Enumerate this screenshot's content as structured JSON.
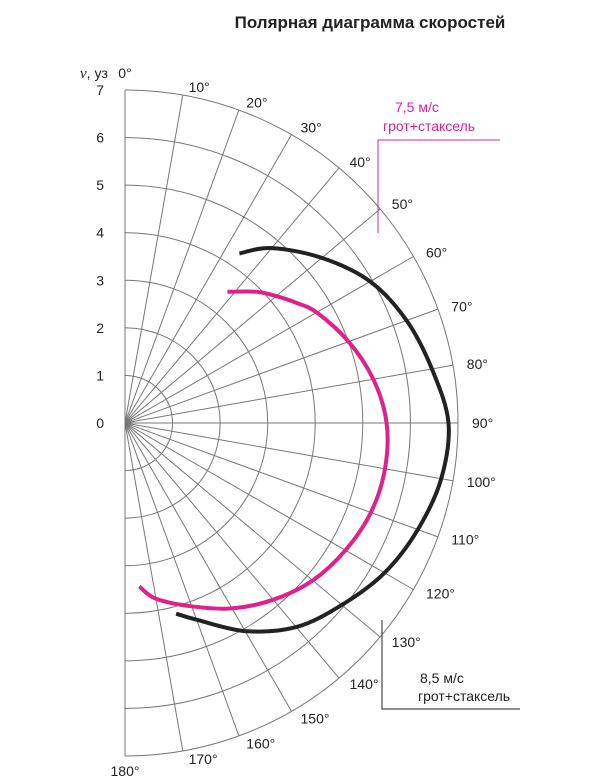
{
  "chart_data": {
    "type": "polar",
    "title": "Полярная диаграмма скоростей",
    "radial_axis": {
      "label": "v",
      "unit": ", уз",
      "range": [
        0,
        7
      ],
      "ticks": [
        "0",
        "1",
        "2",
        "3",
        "4",
        "5",
        "6",
        "7"
      ]
    },
    "angular_axis": {
      "range": [
        0,
        180
      ],
      "ticks": [
        "0°",
        "10°",
        "20°",
        "30°",
        "40°",
        "50°",
        "60°",
        "70°",
        "80°",
        "90°",
        "100°",
        "110°",
        "120°",
        "130°",
        "140°",
        "150°",
        "160°",
        "170°",
        "180°"
      ]
    },
    "grid": true,
    "series": [
      {
        "name_line1": "7,5 м/с",
        "name_line2": "грот+стаксель",
        "color": "#e0218a",
        "angle": [
          38,
          45,
          50,
          55,
          60,
          70,
          80,
          90,
          100,
          110,
          120,
          130,
          140,
          150,
          160,
          170,
          175
        ],
        "speed": [
          3.5,
          3.9,
          4.15,
          4.4,
          4.65,
          5.0,
          5.3,
          5.5,
          5.55,
          5.5,
          5.35,
          5.15,
          4.85,
          4.5,
          4.1,
          3.75,
          3.45
        ]
      },
      {
        "name_line1": "8,5 м/с",
        "name_line2": "грот+стаксель",
        "color": "#222222",
        "angle": [
          34,
          40,
          50,
          60,
          70,
          80,
          90,
          100,
          110,
          120,
          130,
          140,
          150,
          160,
          165
        ],
        "speed": [
          4.3,
          4.8,
          5.4,
          5.95,
          6.3,
          6.55,
          6.8,
          6.75,
          6.55,
          6.3,
          5.95,
          5.6,
          5.05,
          4.4,
          4.15
        ]
      }
    ]
  }
}
